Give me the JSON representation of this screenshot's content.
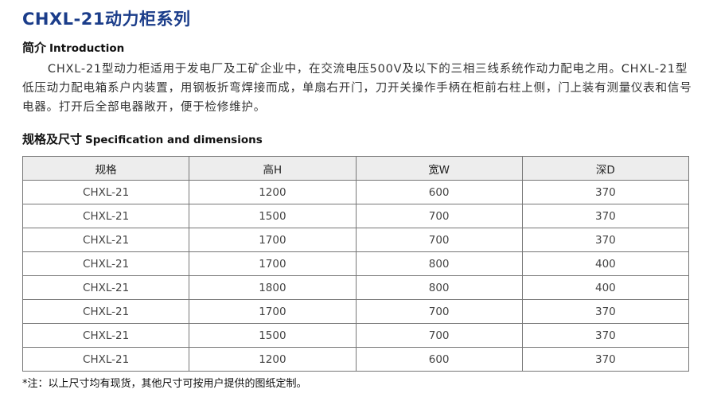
{
  "title": "CHXL-21动力柜系列",
  "intro": {
    "heading_cn": "简介",
    "heading_en": "Introduction",
    "text": "CHXL-21型动力柜适用于发电厂及工矿企业中，在交流电压500V及以下的三相三线系统作动力配电之用。CHXL-21型低压动力配电箱系户内装置，用钢板折弯焊接而成，单扇右开门，刀开关操作手柄在柜前右柱上侧，门上装有测量仪表和信号电器。打开后全部电器敞开，便于检修维护。"
  },
  "spec": {
    "heading_cn": "规格及尺寸",
    "heading_en": "Specification and dimensions",
    "columns": [
      "规格",
      "高H",
      "宽W",
      "深D"
    ],
    "rows": [
      [
        "CHXL-21",
        "1200",
        "600",
        "370"
      ],
      [
        "CHXL-21",
        "1500",
        "700",
        "370"
      ],
      [
        "CHXL-21",
        "1700",
        "700",
        "370"
      ],
      [
        "CHXL-21",
        "1700",
        "800",
        "400"
      ],
      [
        "CHXL-21",
        "1800",
        "800",
        "400"
      ],
      [
        "CHXL-21",
        "1700",
        "700",
        "370"
      ],
      [
        "CHXL-21",
        "1500",
        "700",
        "370"
      ],
      [
        "CHXL-21",
        "1200",
        "600",
        "370"
      ]
    ]
  },
  "note": "*注：以上尺寸均有现货，其他尺寸可按用户提供的图纸定制。"
}
